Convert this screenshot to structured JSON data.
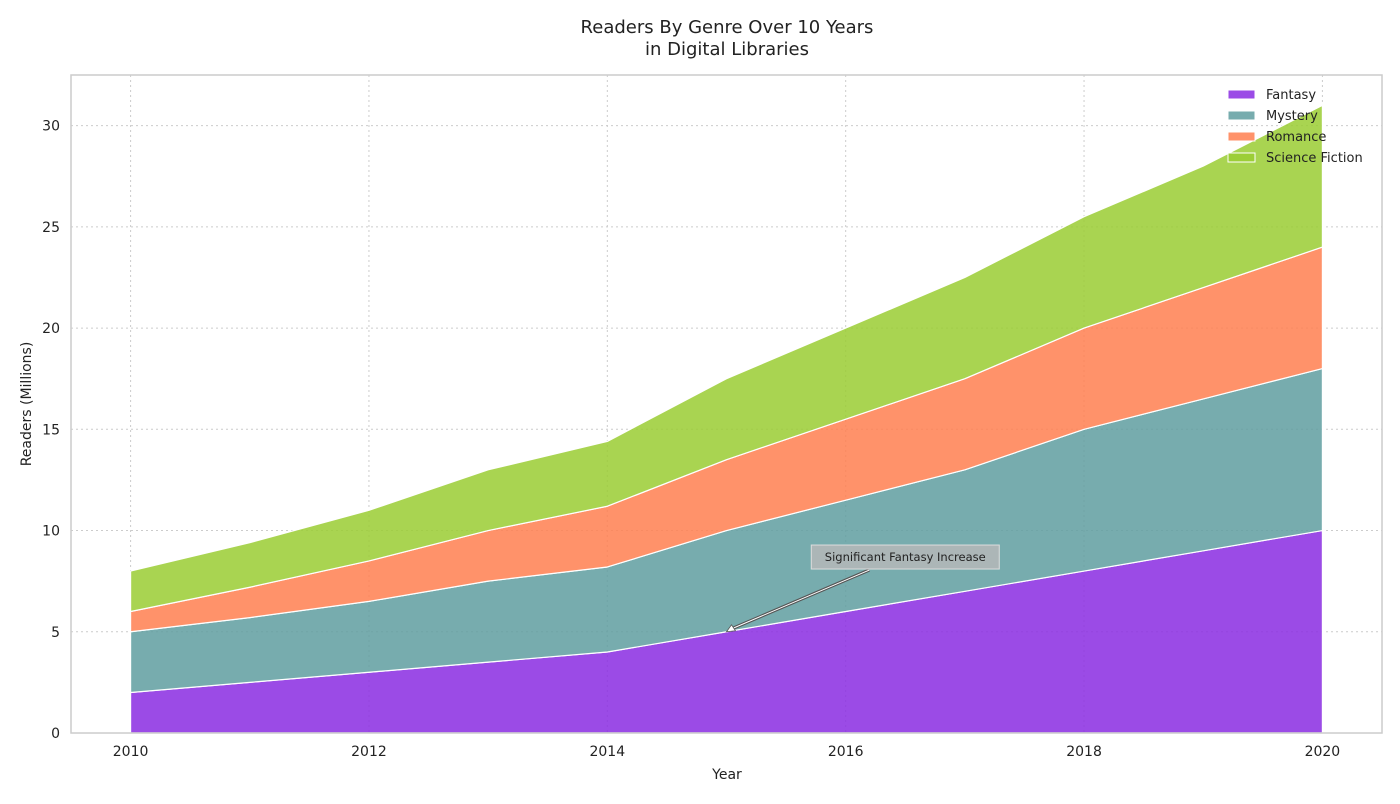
{
  "chart_data": {
    "type": "area",
    "stacked": true,
    "title": [
      "Readers By Genre Over 10 Years",
      "in Digital Libraries"
    ],
    "xlabel": "Year",
    "ylabel": "Readers (Millions)",
    "x": [
      2010,
      2011,
      2012,
      2013,
      2014,
      2015,
      2016,
      2017,
      2018,
      2019,
      2020
    ],
    "xlim": [
      2009.5,
      2020.5
    ],
    "ylim": [
      0,
      32.5
    ],
    "xticks": [
      2010,
      2012,
      2014,
      2016,
      2018,
      2020
    ],
    "yticks": [
      0,
      5,
      10,
      15,
      20,
      25,
      30
    ],
    "grid": true,
    "legend_position": "top-right",
    "series": [
      {
        "name": "Fantasy",
        "color": "#8a2be2",
        "values": [
          2,
          2.5,
          3,
          3.5,
          4,
          5,
          6,
          7,
          8,
          9,
          10
        ]
      },
      {
        "name": "Mystery",
        "color": "#5f9ea0",
        "values": [
          3,
          3.2,
          3.5,
          4,
          4.2,
          5,
          5.5,
          6,
          7,
          7.5,
          8
        ]
      },
      {
        "name": "Romance",
        "color": "#ff7f50",
        "values": [
          1,
          1.5,
          2,
          2.5,
          3,
          3.5,
          4,
          4.5,
          5,
          5.5,
          6
        ]
      },
      {
        "name": "Science Fiction",
        "color": "#9acd32",
        "values": [
          2,
          2.2,
          2.5,
          3,
          3.2,
          4,
          4.5,
          5,
          5.5,
          6,
          7
        ]
      }
    ],
    "annotation": {
      "text": "Significant Fantasy Increase",
      "x": 2015,
      "y": 5,
      "text_x": 2016.5,
      "text_y": 8
    }
  }
}
